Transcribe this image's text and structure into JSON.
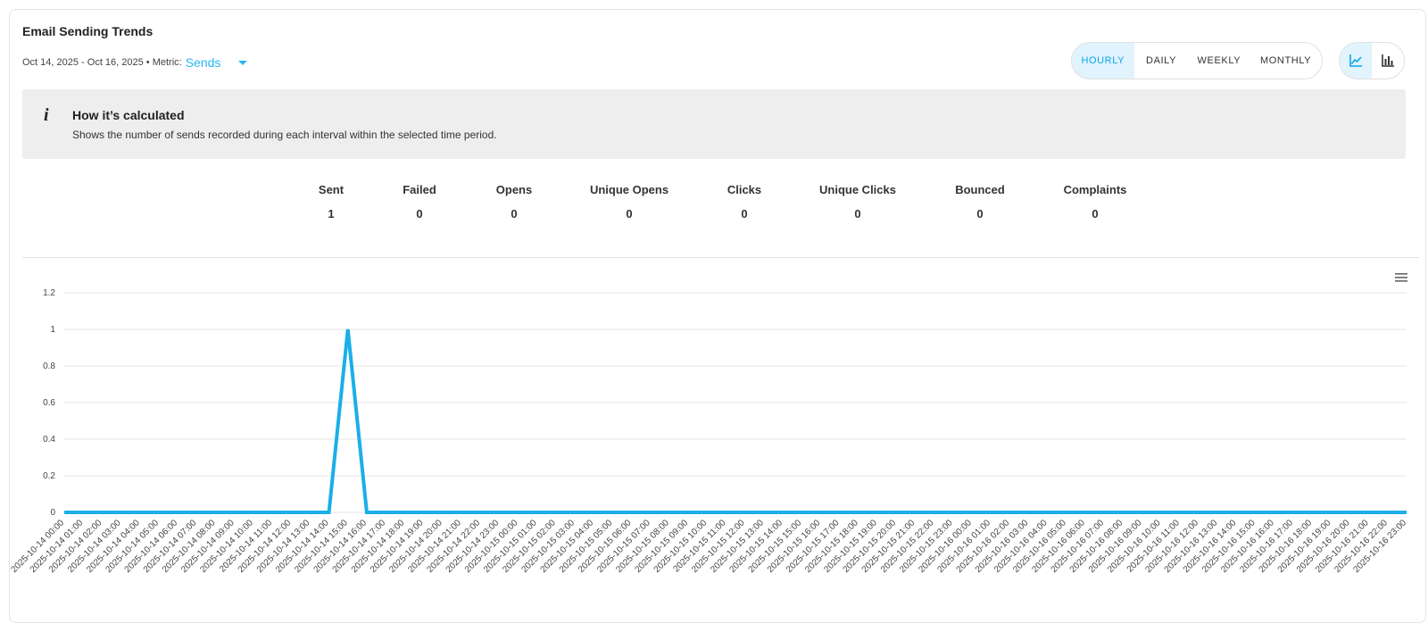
{
  "header": {
    "title": "Email Sending Trends",
    "date_range": "Oct 14, 2025 - Oct 16, 2025 • Metric:",
    "metric_value": "Sends"
  },
  "period_toggle": [
    "HOURLY",
    "DAILY",
    "WEEKLY",
    "MONTHLY"
  ],
  "view_toggle": {
    "active": "line-chart"
  },
  "info": {
    "title": "How it’s calculated",
    "description": "Shows the number of sends recorded during each interval within the selected time period."
  },
  "stats": [
    {
      "label": "Sent",
      "value": "1"
    },
    {
      "label": "Failed",
      "value": "0"
    },
    {
      "label": "Opens",
      "value": "0"
    },
    {
      "label": "Unique Opens",
      "value": "0"
    },
    {
      "label": "Clicks",
      "value": "0"
    },
    {
      "label": "Unique Clicks",
      "value": "0"
    },
    {
      "label": "Bounced",
      "value": "0"
    },
    {
      "label": "Complaints",
      "value": "0"
    }
  ],
  "colors": {
    "accent": "#29b6f6",
    "line": "#1aafe8",
    "grid": "#e6e6e6",
    "active_bg": "#e1f3fd"
  },
  "chart_data": {
    "type": "line",
    "series": [
      {
        "name": "Sends",
        "start": "2025-10-14 00:00",
        "hours": 72,
        "nonzero": {
          "2025-10-14 15:00": 1
        }
      }
    ],
    "y_ticks": [
      "0",
      "0.2",
      "0.4",
      "0.6",
      "0.8",
      "1",
      "1.2"
    ],
    "ylim": [
      0,
      1.2
    ],
    "grid": true
  }
}
